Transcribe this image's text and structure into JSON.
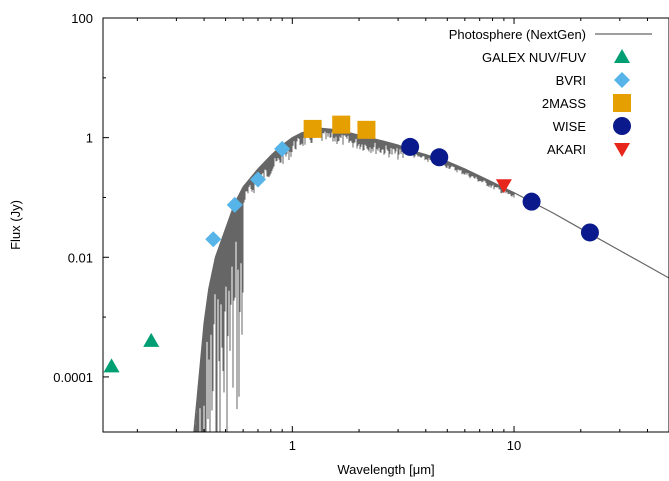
{
  "chart_data": {
    "type": "scatter",
    "title": "",
    "xlabel": "Wavelength [μm]",
    "ylabel": "Flux (Jy)",
    "x_scale": "log",
    "y_scale": "log",
    "xlim": [
      0.14,
      50
    ],
    "ylim": [
      1.2e-05,
      100
    ],
    "x_tick_labels": [
      {
        "value": 1,
        "label": "1"
      },
      {
        "value": 10,
        "label": "10"
      }
    ],
    "y_tick_labels": [
      {
        "value": 0.0001,
        "label": "0.0001"
      },
      {
        "value": 0.01,
        "label": "0.01"
      },
      {
        "value": 1,
        "label": "1"
      },
      {
        "value": 100,
        "label": "100"
      }
    ],
    "grid": false,
    "legend_position": "top-right",
    "series": [
      {
        "name": "Photosphere (NextGen)",
        "type": "line",
        "color": "#666666",
        "x": [
          0.36,
          0.38,
          0.4,
          0.42,
          0.45,
          0.5,
          0.55,
          0.6,
          0.7,
          0.8,
          0.9,
          1.0,
          1.1,
          1.3,
          1.6,
          2.0,
          2.5,
          3.0,
          3.5,
          4.0,
          4.5,
          5.0,
          6.0,
          8.0,
          10.0,
          15.0,
          20.0,
          30.0,
          50.0
        ],
        "y": [
          1e-05,
          0.0001,
          0.0008,
          0.003,
          0.01,
          0.03,
          0.08,
          0.15,
          0.3,
          0.5,
          0.75,
          1.0,
          1.2,
          1.45,
          1.35,
          1.1,
          0.9,
          0.75,
          0.6,
          0.52,
          0.45,
          0.4,
          0.3,
          0.18,
          0.12,
          0.055,
          0.03,
          0.013,
          0.0045
        ]
      },
      {
        "name": "GALEX NUV/FUV",
        "marker": "triangle-up",
        "color": "#009E73",
        "x": [
          0.153,
          0.231
        ],
        "y": [
          0.00015,
          0.0004
        ]
      },
      {
        "name": "BVRI",
        "marker": "diamond",
        "color": "#56B4E9",
        "x": [
          0.44,
          0.55,
          0.7,
          0.9
        ],
        "y": [
          0.02,
          0.075,
          0.2,
          0.65
        ]
      },
      {
        "name": "2MASS",
        "marker": "square",
        "color": "#E69F00",
        "x": [
          1.235,
          1.662,
          2.159
        ],
        "y": [
          1.4,
          1.65,
          1.35
        ]
      },
      {
        "name": "WISE",
        "marker": "circle",
        "color": "#0A1A8C",
        "x": [
          3.4,
          4.6,
          12.0,
          22.0
        ],
        "y": [
          0.7,
          0.47,
          0.085,
          0.026
        ]
      },
      {
        "name": "AKARI",
        "marker": "triangle-down",
        "color": "#E8251B",
        "x": [
          9.0
        ],
        "y": [
          0.16
        ]
      }
    ]
  }
}
